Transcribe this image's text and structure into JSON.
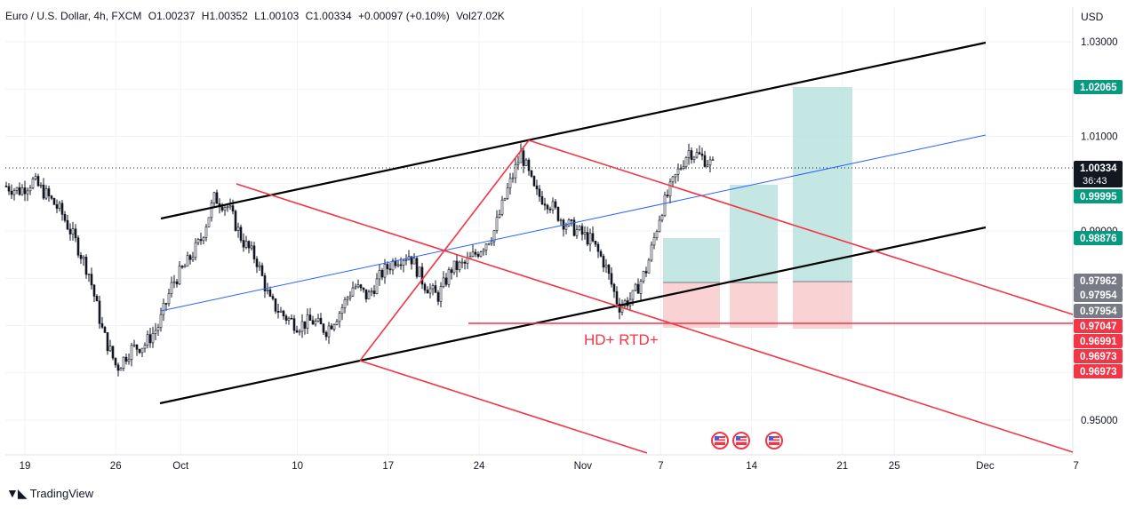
{
  "header": {
    "symbol": "Euro / U.S. Dollar, 4h, FXCM",
    "open": "O1.00237",
    "high": "H1.00352",
    "low": "L1.00103",
    "close": "C1.00334",
    "change": "+0.00097 (+0.10%)",
    "volume": "Vol27.02K"
  },
  "currency_label": "USD",
  "brand": "TradingView",
  "colors": {
    "channel": "#000000",
    "midline": "#2962ff",
    "pitchfork": "#f23645",
    "target_fill": "#b2dfdb",
    "stop_fill": "#f8c8c8",
    "badge_green": "#089981",
    "badge_red": "#f23645",
    "badge_gray": "#787b86",
    "badge_black": "#131722",
    "grid": "#f0f3fa"
  },
  "annotation": "HD+ RTD+",
  "events_icon": "us-flag-icon",
  "chart_data": {
    "type": "candlestick",
    "title": "Euro / U.S. Dollar, 4h, FXCM",
    "ylim": [
      0.943,
      1.037
    ],
    "y_ticks": [
      "1.03000",
      "1.01000",
      "0.99000",
      "0.95000"
    ],
    "x_ticks": [
      "19",
      "26",
      "Oct",
      "10",
      "17",
      "24",
      "Nov",
      "7",
      "14",
      "21",
      "25",
      "Dec",
      "7"
    ],
    "current_price": "1.00334",
    "countdown": "36:43",
    "price_labels": [
      {
        "value": "1.02065",
        "kind": "green"
      },
      {
        "value": "0.99995",
        "kind": "green"
      },
      {
        "value": "0.98876",
        "kind": "green"
      },
      {
        "value": "0.97962",
        "kind": "gray"
      },
      {
        "value": "0.97954",
        "kind": "gray"
      },
      {
        "value": "0.97954",
        "kind": "gray"
      },
      {
        "value": "0.97047",
        "kind": "red"
      },
      {
        "value": "0.96991",
        "kind": "red"
      },
      {
        "value": "0.96973",
        "kind": "red"
      },
      {
        "value": "0.96973",
        "kind": "red"
      }
    ],
    "price_path": [
      [
        "Sep 18",
        0.9995
      ],
      [
        "Sep 19",
        0.9985
      ],
      [
        "Sep 20",
        1.0005
      ],
      [
        "Sep 21",
        0.9975
      ],
      [
        "Sep 22",
        0.994
      ],
      [
        "Sep 23",
        0.988
      ],
      [
        "Sep 24",
        0.981
      ],
      [
        "Sep 26",
        0.9685
      ],
      [
        "Sep 27",
        0.961
      ],
      [
        "Sep 28",
        0.965
      ],
      [
        "Sep 29",
        0.966
      ],
      [
        "Sep 30",
        0.97
      ],
      [
        "Oct 1",
        0.979
      ],
      [
        "Oct 2",
        0.983
      ],
      [
        "Oct 3",
        0.988
      ],
      [
        "Oct 4",
        0.997
      ],
      [
        "Oct 5",
        0.995
      ],
      [
        "Oct 6",
        0.988
      ],
      [
        "Oct 7",
        0.984
      ],
      [
        "Oct 9",
        0.975
      ],
      [
        "Oct 10",
        0.972
      ],
      [
        "Oct 11",
        0.97
      ],
      [
        "Oct 12",
        0.971
      ],
      [
        "Oct 13",
        0.969
      ],
      [
        "Oct 14",
        0.973
      ],
      [
        "Oct 15",
        0.9785
      ],
      [
        "Oct 16",
        0.976
      ],
      [
        "Oct 17",
        0.981
      ],
      [
        "Oct 18",
        0.984
      ],
      [
        "Oct 19",
        0.985
      ],
      [
        "Oct 20",
        0.979
      ],
      [
        "Oct 21",
        0.976
      ],
      [
        "Oct 22",
        0.982
      ],
      [
        "Oct 23",
        0.983
      ],
      [
        "Oct 24",
        0.986
      ],
      [
        "Oct 25",
        0.9895
      ],
      [
        "Oct 26",
        0.9985
      ],
      [
        "Oct 27",
        1.0065
      ],
      [
        "Oct 28",
        0.998
      ],
      [
        "Oct 29",
        0.996
      ],
      [
        "Oct 30",
        0.992
      ],
      [
        "Oct 31",
        0.99
      ],
      [
        "Nov 1",
        0.988
      ],
      [
        "Nov 2",
        0.983
      ],
      [
        "Nov 3",
        0.974
      ],
      [
        "Nov 4",
        0.976
      ],
      [
        "Nov 5",
        0.982
      ],
      [
        "Nov 6",
        0.994
      ],
      [
        "Nov 7",
        1.001
      ],
      [
        "Nov 8",
        1.007
      ],
      [
        "Nov 9",
        1.0055
      ],
      [
        "Nov 10",
        1.0033
      ]
    ]
  }
}
